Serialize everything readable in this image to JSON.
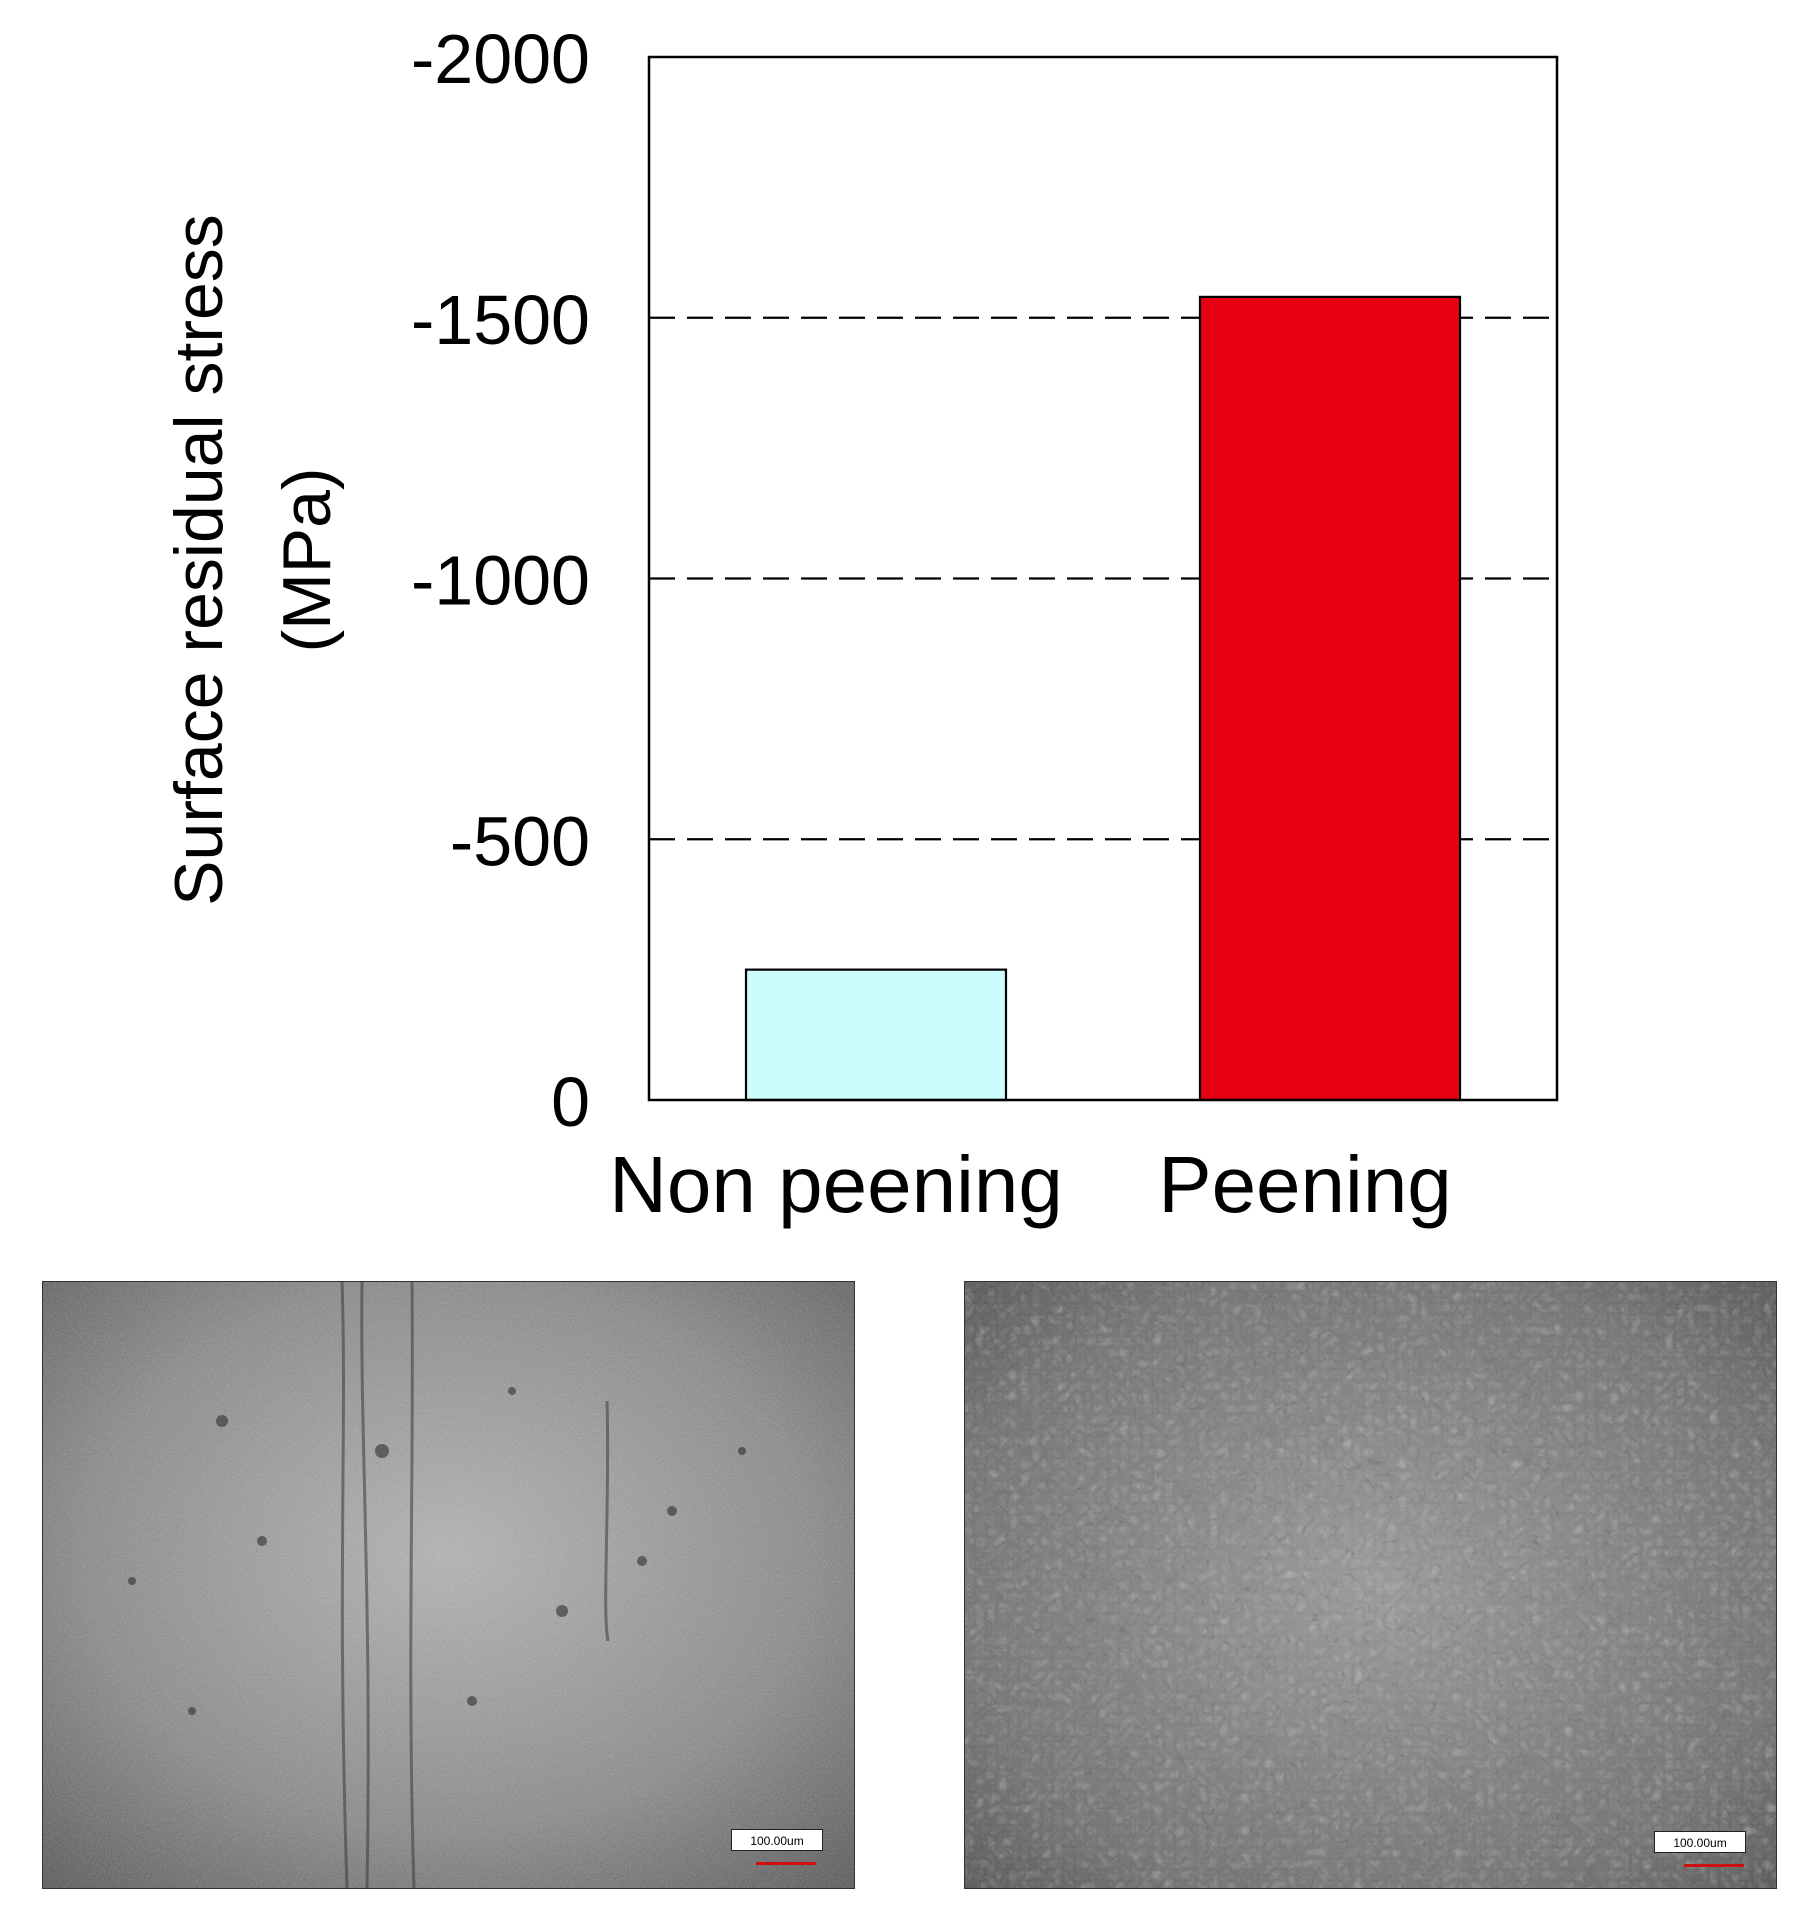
{
  "chart_data": {
    "type": "bar",
    "categories": [
      "Non peening",
      "Peening"
    ],
    "values": [
      -250,
      -1540
    ],
    "ylabel": [
      "Surface residual stress",
      "(MPa)"
    ],
    "ylim": [
      0,
      -2000
    ],
    "yticks": [
      0,
      -500,
      -1000,
      -1500,
      -2000
    ],
    "ytick_labels": [
      "0",
      "-500",
      "-1000",
      "-1500",
      "-2000"
    ],
    "gridlines": [
      -500,
      -1000,
      -1500
    ],
    "grid": "dashed horizontal",
    "bar_colors": [
      "#ccfcfc",
      "#e60012"
    ]
  },
  "micrographs": [
    {
      "label": "Non peening",
      "scale_text": "100.00um",
      "surface": "smooth with scratches"
    },
    {
      "label": "Peening",
      "scale_text": "100.00um",
      "surface": "dimpled texture"
    }
  ]
}
